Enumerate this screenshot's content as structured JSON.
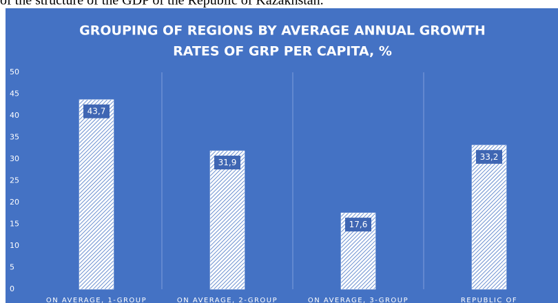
{
  "caption": "of the structure of the GDP of the Republic of Kazakhstan.",
  "chart_data": {
    "type": "bar",
    "title": [
      "GROUPING OF REGIONS BY AVERAGE ANNUAL GROWTH",
      "RATES OF GRP PER CAPITA, %"
    ],
    "categories": [
      "ON AVERAGE, 1-GROUP",
      "ON AVERAGE, 2-GROUP",
      "ON AVERAGE, 3-GROUP",
      "REPUBLIC OF"
    ],
    "values": [
      43.7,
      31.9,
      17.6,
      33.2
    ],
    "value_labels": [
      "43,7",
      "31,9",
      "17,6",
      "33,2"
    ],
    "color": "#ffffff",
    "background": "#4472c4",
    "ylim": [
      0,
      50
    ],
    "yticks": [
      0,
      5,
      10,
      15,
      20,
      25,
      30,
      35,
      40,
      45,
      50
    ],
    "grid": false
  }
}
